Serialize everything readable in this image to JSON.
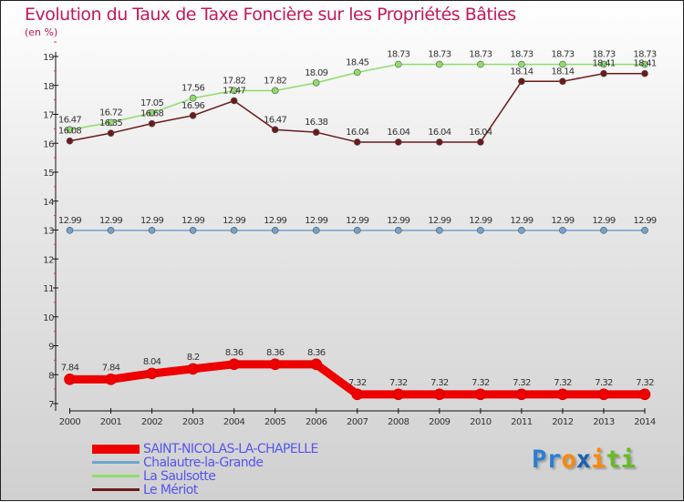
{
  "chart_data": {
    "type": "line",
    "title": "Evolution du Taux de Taxe Foncière sur les Propriétés Bâties",
    "ylabel": "(en %)",
    "x": [
      2000,
      2001,
      2002,
      2003,
      2004,
      2005,
      2006,
      2007,
      2008,
      2009,
      2010,
      2011,
      2012,
      2013,
      2014
    ],
    "ylim": [
      7,
      19
    ],
    "yticks": [
      7,
      8,
      9,
      10,
      11,
      12,
      13,
      14,
      15,
      16,
      17,
      18,
      19
    ],
    "series": [
      {
        "name": "SAINT-NICOLAS-LA-CHAPELLE",
        "color": "#ee0000",
        "values": [
          7.84,
          7.84,
          8.04,
          8.2,
          8.36,
          8.36,
          8.36,
          7.32,
          7.32,
          7.32,
          7.32,
          7.32,
          7.32,
          7.32,
          7.32
        ]
      },
      {
        "name": "Chalautre-la-Grande",
        "color": "#6fa3d0",
        "values": [
          12.99,
          12.99,
          12.99,
          12.99,
          12.99,
          12.99,
          12.99,
          12.99,
          12.99,
          12.99,
          12.99,
          12.99,
          12.99,
          12.99,
          12.99
        ]
      },
      {
        "name": "La Saulsotte",
        "color": "#8fdc6a",
        "values": [
          16.47,
          16.72,
          17.05,
          17.56,
          17.82,
          17.82,
          18.09,
          18.45,
          18.73,
          18.73,
          18.73,
          18.73,
          18.73,
          18.73,
          18.73
        ]
      },
      {
        "name": "Le Mériot",
        "color": "#6b1a1a",
        "values": [
          16.08,
          16.35,
          16.68,
          16.96,
          17.47,
          16.47,
          16.38,
          16.04,
          16.04,
          16.04,
          16.04,
          18.14,
          18.14,
          18.41,
          18.41
        ]
      }
    ]
  },
  "logo": [
    "Pr",
    "o",
    "x",
    "i",
    "ti"
  ]
}
